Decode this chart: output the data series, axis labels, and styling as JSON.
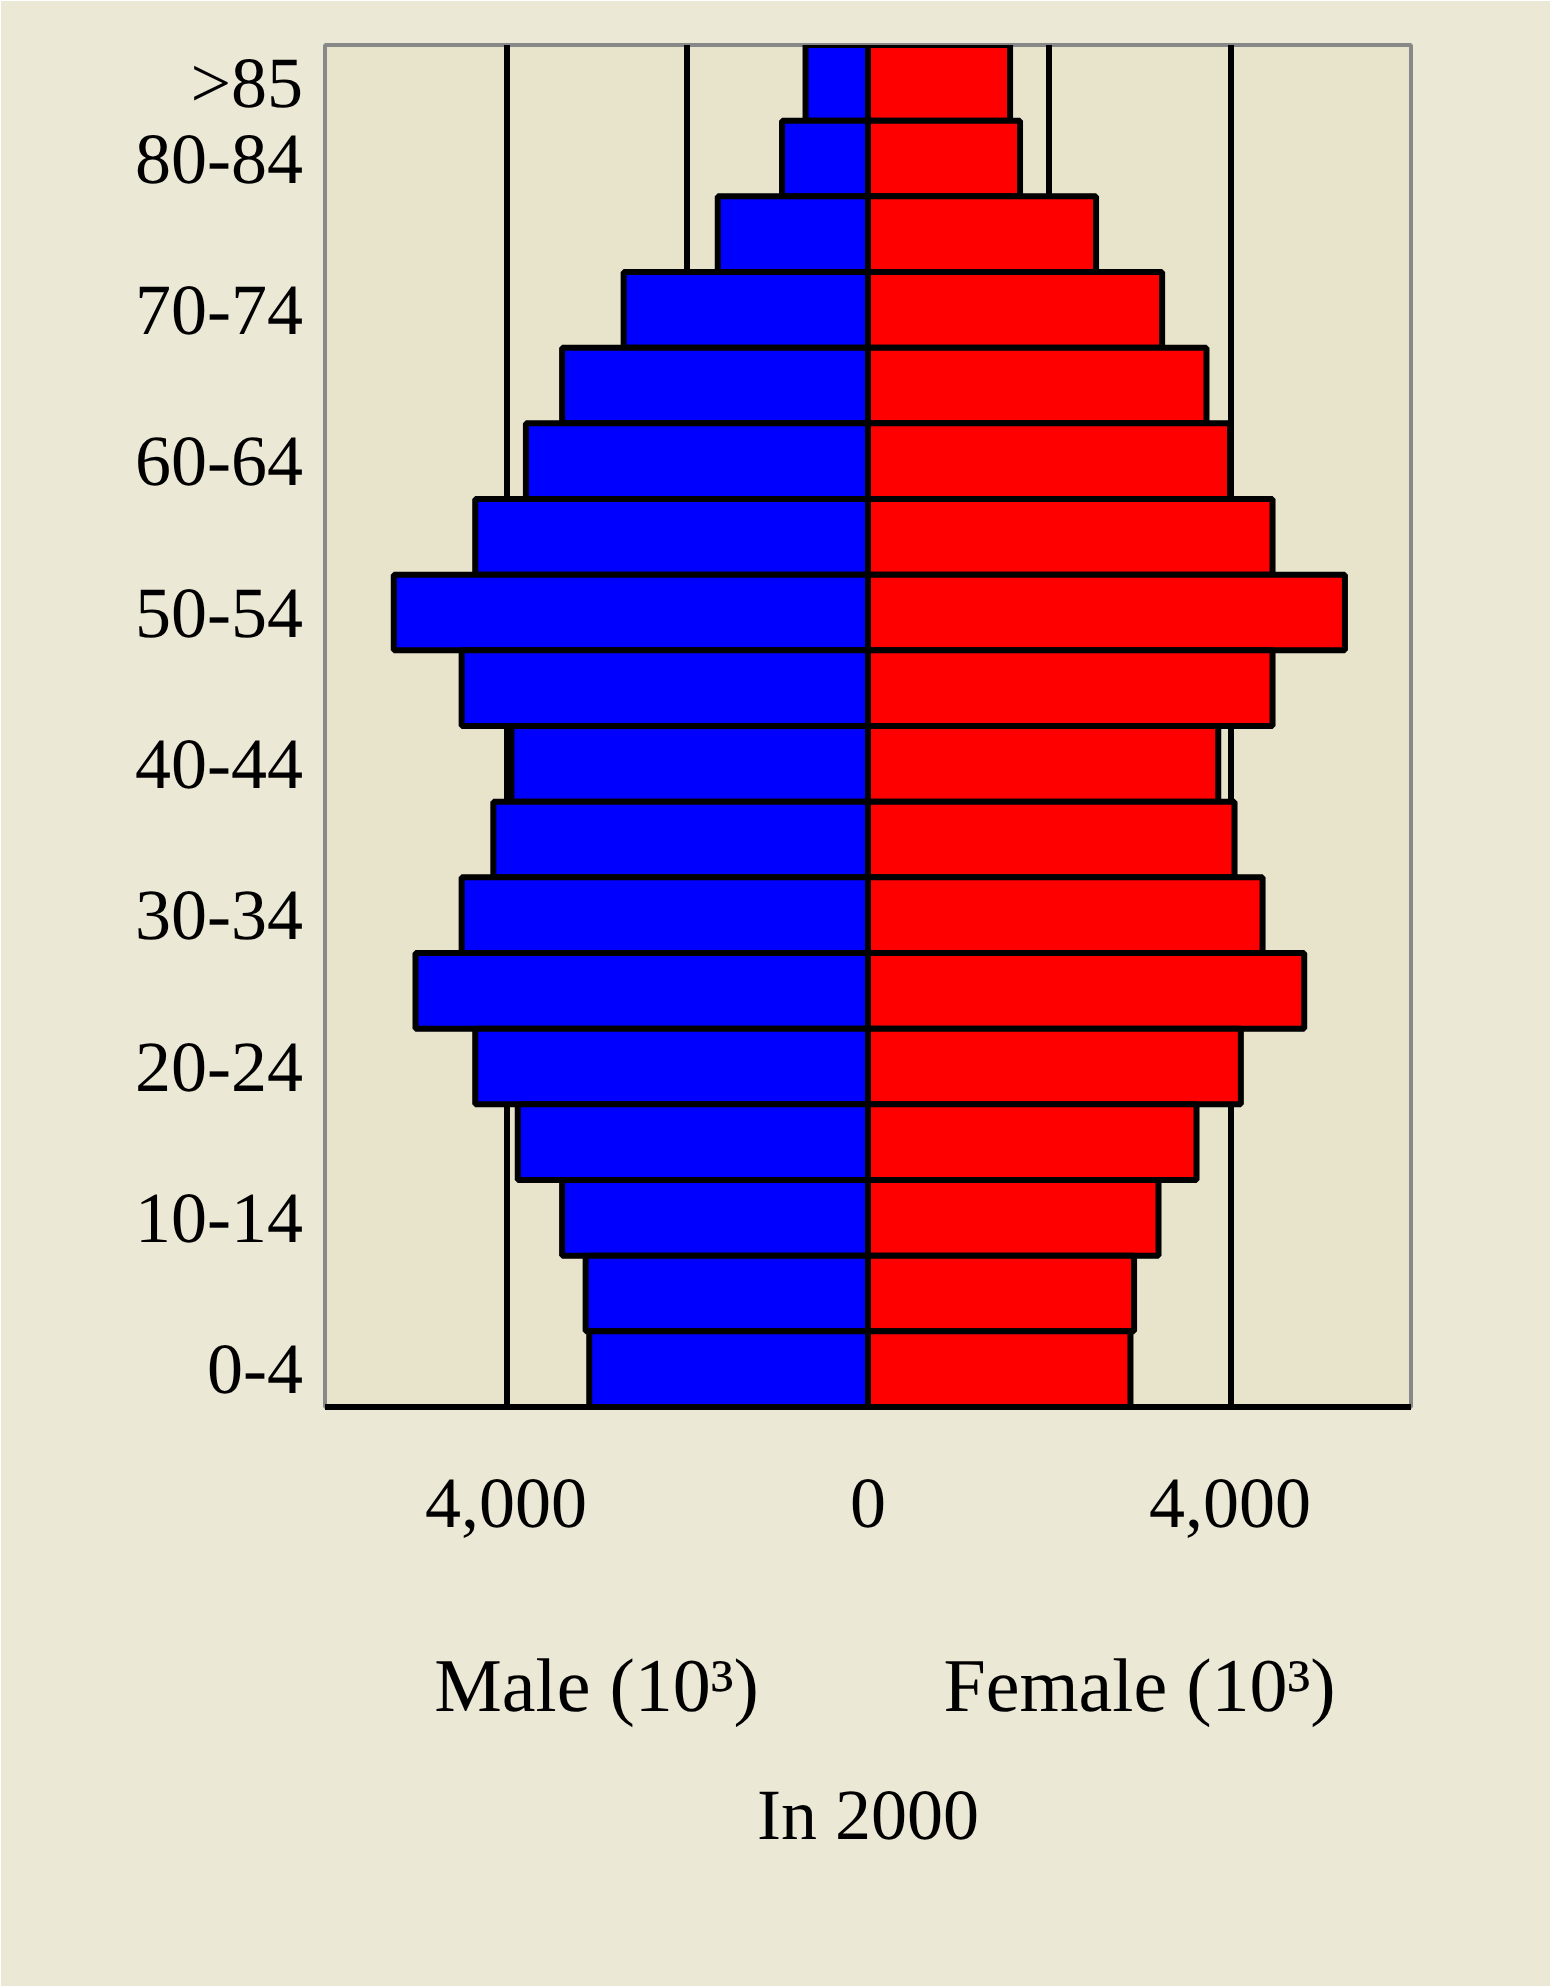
{
  "chart_data": {
    "type": "bar",
    "orientation": "horizontal",
    "xlabel": "In 2000",
    "categories": [
      ">85",
      "80-84",
      null,
      "70-74",
      null,
      "60-64",
      null,
      "50-54",
      null,
      "40-44",
      null,
      "30-34",
      null,
      "20-24",
      null,
      "10-14",
      null,
      "0-4"
    ],
    "series": [
      {
        "color": "#0000ff",
        "values": [
          -690,
          -950,
          -1660,
          -2700,
          -3380,
          -3780,
          -4340,
          -5240,
          -4490,
          -3940,
          -4140,
          -4490,
          -5000,
          -4340,
          -3870,
          -3380,
          -3120,
          -3080
        ]
      },
      {
        "color": "#ff0000",
        "values": [
          1570,
          1680,
          2520,
          3250,
          3740,
          4000,
          4470,
          5270,
          4470,
          3870,
          4050,
          4360,
          4820,
          4120,
          3630,
          3210,
          2940,
          2900
        ]
      }
    ],
    "xlim": [
      -6000,
      6000
    ],
    "xticks": [
      {
        "value": -4000,
        "label": "4,000"
      },
      {
        "value": -2000,
        "label": null
      },
      0,
      {
        "value": 2000,
        "label": null
      },
      {
        "value": 4000,
        "label": "4,000"
      }
    ],
    "grid": "x",
    "stacked": true,
    "annotations": [
      "Male (10³)",
      "Female (10³)"
    ]
  }
}
